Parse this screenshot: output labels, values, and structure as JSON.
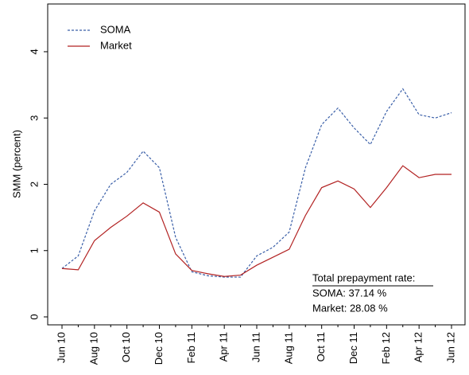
{
  "chart_data": {
    "type": "line",
    "ylabel": "SMM (percent)",
    "categories": [
      "Jun 10",
      null,
      "Aug 10",
      null,
      "Oct 10",
      null,
      "Dec 10",
      null,
      "Feb 11",
      null,
      "Apr 11",
      null,
      "Jun 11",
      null,
      "Aug 11",
      null,
      "Oct 11",
      null,
      "Dec 11",
      null,
      "Feb 12",
      null,
      "Apr 12",
      null,
      "Jun 12"
    ],
    "series": [
      {
        "name": "SOMA",
        "color": "#3a5fa8",
        "dash": true,
        "values": [
          0.73,
          0.92,
          1.6,
          2.0,
          2.18,
          2.5,
          2.25,
          1.2,
          0.68,
          0.62,
          0.6,
          0.6,
          0.92,
          1.05,
          1.28,
          2.25,
          2.9,
          3.15,
          2.85,
          2.6,
          3.1,
          3.44,
          3.05,
          3.0,
          3.08
        ]
      },
      {
        "name": "Market",
        "color": "#b22222",
        "dash": false,
        "values": [
          0.73,
          0.71,
          1.15,
          1.35,
          1.52,
          1.72,
          1.58,
          0.95,
          0.7,
          0.65,
          0.61,
          0.63,
          0.78,
          0.9,
          1.02,
          1.53,
          1.95,
          2.05,
          1.93,
          1.65,
          1.95,
          2.28,
          2.1,
          2.15,
          2.15
        ]
      }
    ],
    "ylim": [
      -0.12,
      4.72
    ],
    "yticks": [
      0,
      1,
      2,
      3,
      4
    ],
    "legend": "upper left",
    "annotations": [
      "Total prepayment rate:",
      "SOMA:  37.14 %",
      "Market:  28.08 %"
    ]
  }
}
